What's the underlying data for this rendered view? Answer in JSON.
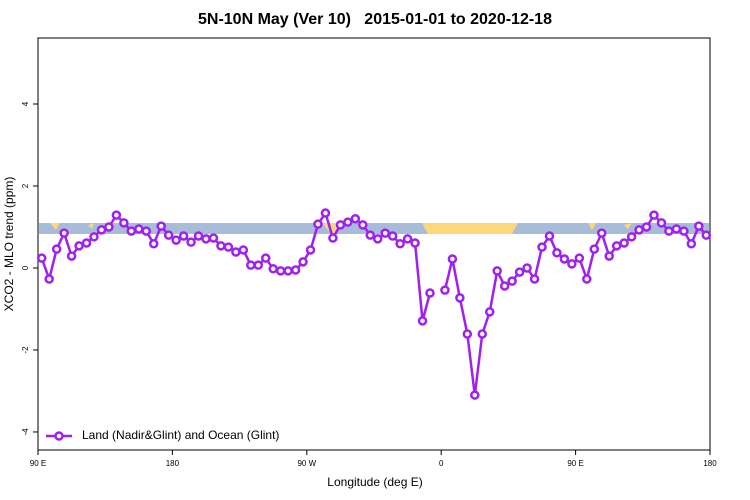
{
  "chart_data": {
    "type": "line",
    "title": "5N-10N May (Ver 10)   2015-01-01 to 2020-12-18",
    "x_label": "Longitude (deg E)",
    "y_label": "XCO2 - MLO trend (ppm)",
    "x": [
      92.5,
      97.5,
      102.5,
      107.5,
      112.5,
      117.5,
      122.5,
      127.5,
      132.5,
      137.5,
      142.5,
      147.5,
      152.5,
      157.5,
      162.5,
      167.5,
      172.5,
      177.5,
      182.5,
      187.5,
      192.5,
      197.5,
      202.5,
      207.5,
      212.5,
      217.5,
      222.5,
      227.5,
      232.5,
      237.5,
      242.5,
      247.5,
      252.5,
      257.5,
      262.5,
      267.5,
      272.5,
      277.5,
      282.5,
      287.5,
      292.5,
      297.5,
      302.5,
      307.5,
      312.5,
      317.5,
      322.5,
      327.5,
      332.5,
      337.5,
      342.5,
      347.5,
      352.5,
      357.5,
      362.5,
      367.5,
      372.5,
      377.5,
      382.5,
      387.5,
      392.5,
      397.5,
      402.5,
      407.5,
      412.5,
      417.5,
      422.5,
      427.5,
      432.5,
      437.5,
      442.5,
      447.5,
      452.5,
      457.5,
      462.5,
      467.5,
      472.5,
      477.5,
      482.5,
      487.5,
      492.5,
      497.5,
      502.5,
      507.5,
      512.5,
      517.5,
      522.5,
      527.5,
      532.5,
      537.5
    ],
    "series": [
      {
        "name": "Land (Nadir&Glint) and Ocean (Glint)",
        "color": "#a020f0",
        "values": [
          0.24,
          -0.27,
          0.46,
          0.85,
          0.29,
          0.54,
          0.61,
          0.76,
          0.93,
          1.0,
          1.29,
          1.1,
          0.9,
          0.95,
          0.9,
          0.59,
          1.02,
          0.8,
          0.68,
          0.78,
          0.63,
          0.78,
          0.71,
          0.73,
          0.54,
          0.51,
          0.39,
          0.44,
          0.07,
          0.07,
          0.24,
          -0.02,
          -0.07,
          -0.07,
          -0.05,
          0.15,
          0.44,
          1.07,
          1.34,
          0.73,
          1.05,
          1.12,
          1.2,
          1.05,
          0.8,
          0.71,
          0.85,
          0.78,
          0.59,
          0.71,
          0.61,
          -1.29,
          -0.61,
          null,
          -0.54,
          0.22,
          -0.73,
          -1.61,
          -3.1,
          -1.61,
          -1.07,
          -0.07,
          -0.44,
          -0.32,
          -0.1,
          0.0,
          -0.27,
          0.51,
          0.78,
          0.37,
          0.22,
          0.1,
          0.24,
          -0.27,
          0.46,
          0.85,
          0.29,
          0.54,
          0.61,
          0.76,
          0.93,
          1.0,
          1.29,
          1.1,
          0.9,
          0.95,
          0.9,
          0.59,
          1.02,
          0.8
        ]
      }
    ],
    "xlim": [
      90,
      540
    ],
    "xticks": [
      {
        "value": 90,
        "label": "90 E"
      },
      {
        "value": 180,
        "label": "180"
      },
      {
        "value": 270,
        "label": "90 W"
      },
      {
        "value": 360,
        "label": "0"
      },
      {
        "value": 450,
        "label": "90 E"
      },
      {
        "value": 540,
        "label": "180"
      }
    ],
    "ylim": [
      -4.44,
      5.61
    ],
    "yticks": [
      -4,
      -2,
      0,
      2,
      4
    ],
    "legend": "bottom-left"
  }
}
